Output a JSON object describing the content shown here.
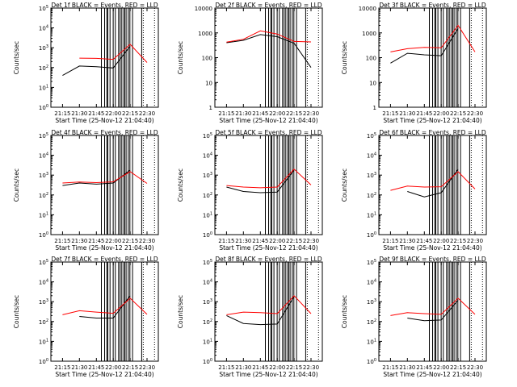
{
  "figure": {
    "panel_titles": [
      "Det 1f BLACK = Events, RED = LLD",
      "Det 2f BLACK = Events, RED = LLD",
      "Det 3f BLACK = Events, RED = LLD",
      "Det 4f BLACK = Events, RED = LLD",
      "Det 5f BLACK = Events, RED = LLD",
      "Det 6f BLACK = Events, RED = LLD",
      "Det 7f BLACK = Events, RED = LLD",
      "Det 8f BLACK = Events, RED = LLD",
      "Det 9f BLACK = Events, RED = LLD"
    ],
    "ylabel": "Counts/sec",
    "xlabel": "Start Time (25-Nov-12 21:04:40)",
    "xtick_labels": [
      "21:15",
      "21:30",
      "21:45",
      "22:00",
      "22:15",
      "22:30"
    ]
  },
  "chart_data": [
    {
      "type": "line",
      "title": "Det 1f BLACK = Events, RED = LLD",
      "xlabel": "Start Time (25-Nov-12 21:04:40)",
      "ylabel": "Counts/sec",
      "yscale": "log",
      "ylim": [
        1,
        100000
      ],
      "xlim": [
        "21:04:40",
        "22:40:00"
      ],
      "x": [
        "21:15",
        "21:30",
        "21:45",
        "22:00",
        "22:15",
        "22:30"
      ],
      "ytick_labels": [
        "10^0",
        "10^1",
        "10^2",
        "10^3",
        "10^4",
        "10^5"
      ],
      "series": [
        {
          "name": "Events",
          "color": "#000000",
          "values": [
            40,
            120,
            110,
            95,
            1200,
            null
          ]
        },
        {
          "name": "LLD",
          "color": "#ff0000",
          "values": [
            null,
            300,
            290,
            260,
            1500,
            180
          ]
        }
      ]
    },
    {
      "type": "line",
      "title": "Det 2f BLACK = Events, RED = LLD",
      "xlabel": "Start Time (25-Nov-12 21:04:40)",
      "ylabel": "Counts/sec",
      "yscale": "log",
      "ylim": [
        1,
        10000
      ],
      "xlim": [
        "21:04:40",
        "22:40:00"
      ],
      "x": [
        "21:15",
        "21:30",
        "21:45",
        "22:00",
        "22:15",
        "22:30"
      ],
      "ytick_labels": [
        "1",
        "10",
        "100",
        "1000",
        "10000"
      ],
      "series": [
        {
          "name": "Events",
          "color": "#000000",
          "values": [
            400,
            500,
            850,
            700,
            380,
            40
          ]
        },
        {
          "name": "LLD",
          "color": "#ff0000",
          "values": [
            420,
            550,
            1200,
            900,
            450,
            430
          ]
        }
      ]
    },
    {
      "type": "line",
      "title": "Det 3f BLACK = Events, RED = LLD",
      "xlabel": "Start Time (25-Nov-12 21:04:40)",
      "ylabel": "Counts/sec",
      "yscale": "log",
      "ylim": [
        1,
        10000
      ],
      "xlim": [
        "21:04:40",
        "22:40:00"
      ],
      "x": [
        "21:15",
        "21:30",
        "21:45",
        "22:00",
        "22:15",
        "22:30"
      ],
      "ytick_labels": [
        "1",
        "10",
        "100",
        "1000",
        "10000"
      ],
      "series": [
        {
          "name": "Events",
          "color": "#000000",
          "values": [
            60,
            150,
            130,
            120,
            1500,
            null
          ]
        },
        {
          "name": "LLD",
          "color": "#ff0000",
          "values": [
            170,
            230,
            260,
            250,
            2000,
            170
          ]
        }
      ]
    },
    {
      "type": "line",
      "title": "Det 4f BLACK = Events, RED = LLD",
      "xlabel": "Start Time (25-Nov-12 21:04:40)",
      "ylabel": "Counts/sec",
      "yscale": "log",
      "ylim": [
        1,
        100000
      ],
      "xlim": [
        "21:04:40",
        "22:40:00"
      ],
      "x": [
        "21:15",
        "21:30",
        "21:45",
        "22:00",
        "22:15",
        "22:30"
      ],
      "ytick_labels": [
        "10^0",
        "10^1",
        "10^2",
        "10^3",
        "10^4",
        "10^5"
      ],
      "series": [
        {
          "name": "Events",
          "color": "#000000",
          "values": [
            300,
            400,
            350,
            400,
            1800,
            null
          ]
        },
        {
          "name": "LLD",
          "color": "#ff0000",
          "values": [
            400,
            450,
            420,
            460,
            1500,
            380
          ]
        }
      ]
    },
    {
      "type": "line",
      "title": "Det 5f BLACK = Events, RED = LLD",
      "xlabel": "Start Time (25-Nov-12 21:04:40)",
      "ylabel": "Counts/sec",
      "yscale": "log",
      "ylim": [
        1,
        100000
      ],
      "xlim": [
        "21:04:40",
        "22:40:00"
      ],
      "x": [
        "21:15",
        "21:30",
        "21:45",
        "22:00",
        "22:15",
        "22:30"
      ],
      "ytick_labels": [
        "10^0",
        "10^1",
        "10^2",
        "10^3",
        "10^4",
        "10^5"
      ],
      "series": [
        {
          "name": "Events",
          "color": "#000000",
          "values": [
            250,
            150,
            130,
            140,
            1800,
            null
          ]
        },
        {
          "name": "LLD",
          "color": "#ff0000",
          "values": [
            300,
            250,
            230,
            250,
            2000,
            320
          ]
        }
      ]
    },
    {
      "type": "line",
      "title": "Det 6f BLACK = Events, RED = LLD",
      "xlabel": "Start Time (25-Nov-12 21:04:40)",
      "ylabel": "Counts/sec",
      "yscale": "log",
      "ylim": [
        1,
        100000
      ],
      "xlim": [
        "21:04:40",
        "22:40:00"
      ],
      "x": [
        "21:15",
        "21:30",
        "21:45",
        "22:00",
        "22:15",
        "22:30"
      ],
      "ytick_labels": [
        "10^0",
        "10^1",
        "10^2",
        "10^3",
        "10^4",
        "10^5"
      ],
      "series": [
        {
          "name": "Events",
          "color": "#000000",
          "values": [
            null,
            150,
            80,
            130,
            2000,
            null
          ]
        },
        {
          "name": "LLD",
          "color": "#ff0000",
          "values": [
            170,
            280,
            250,
            260,
            1500,
            200
          ]
        }
      ]
    },
    {
      "type": "line",
      "title": "Det 7f BLACK = Events, RED = LLD",
      "xlabel": "Start Time (25-Nov-12 21:04:40)",
      "ylabel": "Counts/sec",
      "yscale": "log",
      "ylim": [
        1,
        100000
      ],
      "xlim": [
        "21:04:40",
        "22:40:00"
      ],
      "x": [
        "21:15",
        "21:30",
        "21:45",
        "22:00",
        "22:15",
        "22:30"
      ],
      "ytick_labels": [
        "10^0",
        "10^1",
        "10^2",
        "10^3",
        "10^4",
        "10^5"
      ],
      "series": [
        {
          "name": "Events",
          "color": "#000000",
          "values": [
            null,
            180,
            150,
            150,
            2000,
            null
          ]
        },
        {
          "name": "LLD",
          "color": "#ff0000",
          "values": [
            220,
            350,
            300,
            260,
            1500,
            230
          ]
        }
      ]
    },
    {
      "type": "line",
      "title": "Det 8f BLACK = Events, RED = LLD",
      "xlabel": "Start Time (25-Nov-12 21:04:40)",
      "ylabel": "Counts/sec",
      "yscale": "log",
      "ylim": [
        1,
        100000
      ],
      "xlim": [
        "21:04:40",
        "22:40:00"
      ],
      "x": [
        "21:15",
        "21:30",
        "21:45",
        "22:00",
        "22:15",
        "22:30"
      ],
      "ytick_labels": [
        "10^0",
        "10^1",
        "10^2",
        "10^3",
        "10^4",
        "10^5"
      ],
      "series": [
        {
          "name": "Events",
          "color": "#000000",
          "values": [
            200,
            80,
            70,
            75,
            1800,
            null
          ]
        },
        {
          "name": "LLD",
          "color": "#ff0000",
          "values": [
            220,
            300,
            280,
            250,
            2000,
            250
          ]
        }
      ]
    },
    {
      "type": "line",
      "title": "Det 9f BLACK = Events, RED = LLD",
      "xlabel": "Start Time (25-Nov-12 21:04:40)",
      "ylabel": "Counts/sec",
      "yscale": "log",
      "ylim": [
        1,
        100000
      ],
      "xlim": [
        "21:04:40",
        "22:40:00"
      ],
      "x": [
        "21:15",
        "21:30",
        "21:45",
        "22:00",
        "22:15",
        "22:30"
      ],
      "ytick_labels": [
        "10^0",
        "10^1",
        "10^2",
        "10^3",
        "10^4",
        "10^5"
      ],
      "series": [
        {
          "name": "Events",
          "color": "#000000",
          "values": [
            null,
            150,
            110,
            120,
            1200,
            null
          ]
        },
        {
          "name": "LLD",
          "color": "#ff0000",
          "values": [
            200,
            280,
            250,
            230,
            1500,
            230
          ]
        }
      ]
    }
  ]
}
